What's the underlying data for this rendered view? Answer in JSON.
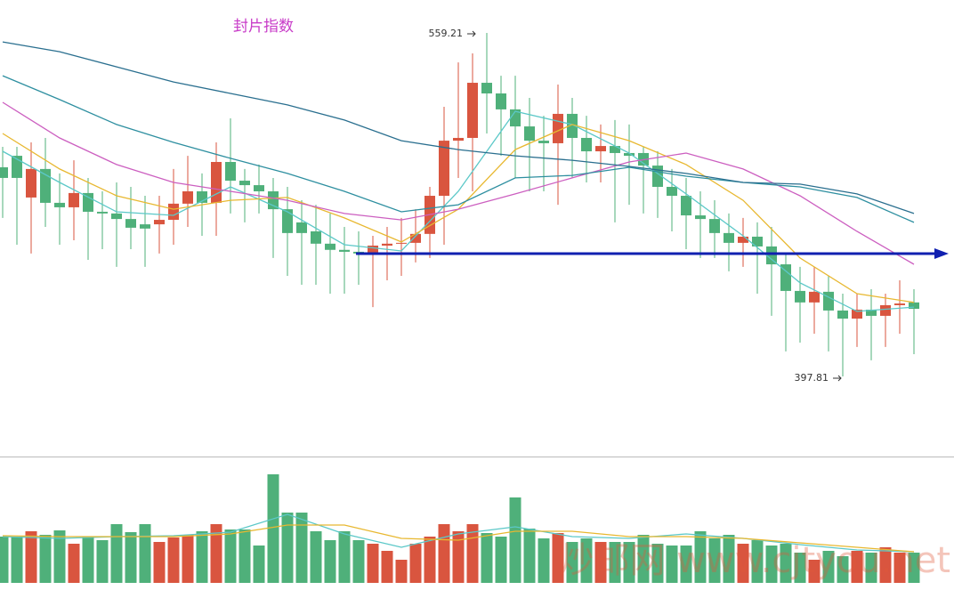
{
  "chart_data": {
    "type": "candlestick",
    "title": "封片指数",
    "watermark": "炒邮网 www.cjtyou.net",
    "annotations": [
      559.21,
      397.81
    ],
    "categories": [
      null,
      null,
      null,
      null,
      null,
      null,
      null,
      null,
      null,
      null,
      null,
      null,
      null,
      null,
      null,
      null,
      null,
      null,
      null,
      null,
      null,
      null,
      null,
      null,
      null,
      null,
      null,
      null,
      null,
      null,
      null,
      null,
      null,
      null,
      null,
      null,
      null,
      null,
      null,
      null,
      null,
      null,
      null,
      null,
      null,
      null,
      null,
      null,
      null,
      null,
      null,
      null,
      null,
      null,
      null,
      null,
      null,
      null,
      null,
      null,
      null,
      null,
      null,
      null,
      null
    ],
    "up_color": "#d9553f",
    "down_color": "#4fb07a",
    "ylim": [
      360.2,
      574.7
    ],
    "open": [
      496.1,
      501.5,
      481.9,
      495.3,
      479.4,
      477.3,
      484.0,
      475.2,
      474.4,
      471.8,
      469.3,
      469.3,
      471.4,
      479.0,
      484.8,
      479.4,
      498.6,
      489.8,
      487.7,
      484.8,
      476.4,
      470.2,
      466.0,
      460.2,
      457.3,
      456.4,
      455.6,
      459.3,
      460.2,
      460.6,
      464.8,
      482.7,
      508.6,
      509.9,
      535.8,
      530.8,
      523.3,
      515.3,
      508.6,
      507.4,
      521.2,
      509.9,
      503.6,
      506.1,
      502.8,
      502.8,
      496.9,
      486.9,
      482.7,
      473.5,
      471.8,
      465.2,
      460.6,
      463.5,
      458.9,
      450.5,
      438.0,
      432.6,
      437.6,
      428.8,
      425.0,
      429.2,
      426.3,
      431.3,
      432.6
    ],
    "high": [
      505.7,
      505.7,
      507.8,
      509.9,
      493.2,
      499.4,
      491.1,
      484.8,
      489.0,
      486.9,
      482.7,
      482.7,
      495.3,
      501.5,
      493.2,
      507.8,
      519.1,
      495.3,
      497.4,
      491.1,
      486.9,
      480.6,
      478.5,
      474.4,
      468.1,
      466.0,
      463.9,
      468.1,
      472.3,
      476.4,
      486.9,
      524.5,
      545.4,
      549.6,
      559.21,
      539.1,
      539.1,
      528.7,
      520.3,
      535.0,
      528.7,
      520.3,
      516.2,
      518.3,
      516.2,
      505.7,
      503.6,
      495.3,
      491.1,
      484.8,
      480.6,
      474.4,
      472.3,
      470.2,
      468.1,
      455.6,
      449.3,
      449.3,
      445.1,
      436.7,
      436.7,
      438.8,
      436.7,
      443.0,
      438.8
    ],
    "low": [
      472.3,
      459.7,
      455.6,
      468.1,
      459.7,
      461.8,
      452.6,
      457.6,
      449.3,
      457.6,
      449.3,
      455.6,
      459.7,
      468.1,
      463.9,
      463.9,
      474.4,
      470.2,
      474.4,
      453.5,
      445.1,
      440.9,
      440.9,
      436.7,
      436.7,
      440.9,
      430.4,
      443.0,
      445.1,
      451.4,
      453.5,
      459.7,
      491.1,
      484.8,
      512.0,
      501.5,
      491.1,
      484.8,
      484.8,
      478.5,
      491.1,
      489.0,
      489.0,
      470.2,
      478.5,
      474.4,
      472.3,
      466.0,
      457.6,
      453.5,
      453.5,
      447.2,
      449.3,
      436.7,
      426.3,
      409.6,
      413.7,
      417.9,
      409.6,
      397.81,
      411.7,
      405.4,
      411.7,
      417.9,
      408.3
    ],
    "close": [
      491.1,
      491.1,
      495.3,
      479.4,
      477.3,
      484.0,
      475.2,
      474.4,
      471.8,
      467.7,
      467.3,
      471.4,
      479.0,
      484.8,
      479.4,
      498.6,
      489.8,
      487.7,
      484.8,
      476.4,
      465.2,
      465.2,
      460.2,
      457.3,
      456.4,
      455.6,
      459.3,
      460.2,
      460.6,
      464.8,
      482.7,
      508.6,
      509.9,
      535.8,
      530.8,
      523.3,
      515.3,
      508.6,
      507.4,
      521.2,
      509.9,
      503.6,
      506.1,
      502.8,
      501.5,
      496.9,
      486.9,
      482.7,
      473.5,
      471.8,
      465.2,
      460.6,
      463.5,
      458.9,
      450.5,
      438.0,
      432.6,
      437.6,
      428.8,
      425.0,
      429.2,
      426.3,
      431.3,
      432.1,
      429.6
    ],
    "ma_x": [
      0,
      4,
      8,
      12,
      16,
      20,
      24,
      28,
      32,
      36,
      40,
      44,
      48,
      52,
      56,
      60,
      64
    ],
    "moving_averages": [
      {
        "color": "#5bc8c8",
        "values": [
          503.6,
          489.0,
          475.2,
          473.5,
          486.9,
          475.2,
          459.7,
          456.8,
          484.8,
          522.4,
          516.2,
          502.8,
          483.6,
          463.9,
          441.8,
          428.4,
          430.4
        ]
      },
      {
        "color": "#e8b830",
        "values": [
          512.0,
          495.3,
          482.7,
          476.4,
          480.6,
          481.9,
          472.3,
          461.0,
          476.4,
          504.4,
          516.2,
          508.6,
          497.4,
          480.6,
          453.5,
          436.7,
          432.6
        ]
      },
      {
        "color": "#cc5fc0",
        "values": [
          526.6,
          509.9,
          497.4,
          489.0,
          484.8,
          480.6,
          474.4,
          471.4,
          476.4,
          483.6,
          491.1,
          498.6,
          502.8,
          495.3,
          482.7,
          466.0,
          450.5
        ]
      },
      {
        "color": "#2e8fa0",
        "values": [
          539.1,
          527.9,
          516.2,
          507.8,
          500.3,
          493.2,
          484.8,
          475.2,
          478.5,
          491.1,
          492.3,
          496.1,
          491.9,
          489.0,
          486.9,
          481.9,
          470.2
        ]
      },
      {
        "color": "#2a6f8f",
        "values": [
          555.0,
          550.4,
          543.3,
          536.2,
          530.8,
          525.4,
          518.3,
          508.6,
          504.4,
          501.5,
          499.4,
          496.5,
          493.2,
          489.0,
          488.2,
          483.6,
          474.4
        ]
      }
    ],
    "volume": {
      "ylim": [
        0,
        140
      ],
      "values": [
        52,
        52,
        58,
        54,
        59,
        44,
        52,
        48,
        66,
        57,
        66,
        46,
        51,
        54,
        58,
        66,
        60,
        60,
        42,
        122,
        79,
        79,
        58,
        48,
        58,
        48,
        44,
        36,
        26,
        44,
        52,
        66,
        58,
        66,
        56,
        52,
        96,
        61,
        50,
        56,
        46,
        50,
        46,
        46,
        46,
        54,
        44,
        42,
        42,
        58,
        50,
        54,
        44,
        48,
        42,
        44,
        34,
        26,
        36,
        30,
        36,
        34,
        40,
        34,
        34
      ],
      "moving_averages": [
        {
          "color": "#5bc8c8",
          "values": [
            52,
            50,
            52,
            53,
            57,
            77,
            55,
            40,
            55,
            63,
            52,
            50,
            55,
            50,
            43,
            37,
            35
          ]
        },
        {
          "color": "#e8b830",
          "values": [
            53,
            52,
            52,
            52,
            55,
            65,
            65,
            50,
            48,
            58,
            58,
            52,
            52,
            50,
            45,
            40,
            35
          ]
        }
      ]
    }
  }
}
